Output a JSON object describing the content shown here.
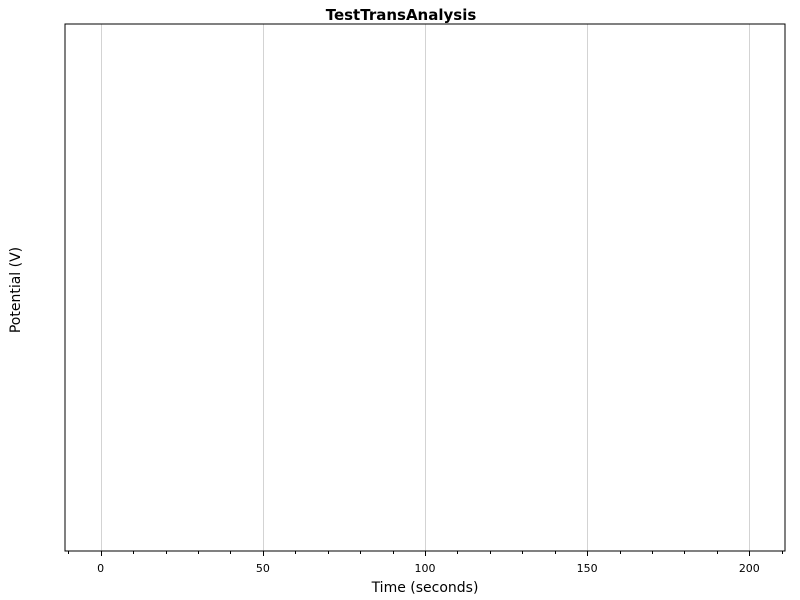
{
  "chart_data": {
    "type": "line",
    "title": "TestTransAnalysis",
    "xlabel": "Time (seconds)",
    "ylabel": "Potential (V)",
    "xlim": [
      -11,
      211
    ],
    "x_ticks": [
      0,
      50,
      100,
      150,
      200
    ],
    "x_minor_step": 10,
    "x_grid": true,
    "y_grid": false,
    "series": [],
    "colors": {
      "grid": "#d3d3d3",
      "axis": "#000000",
      "background": "#ffffff"
    }
  }
}
